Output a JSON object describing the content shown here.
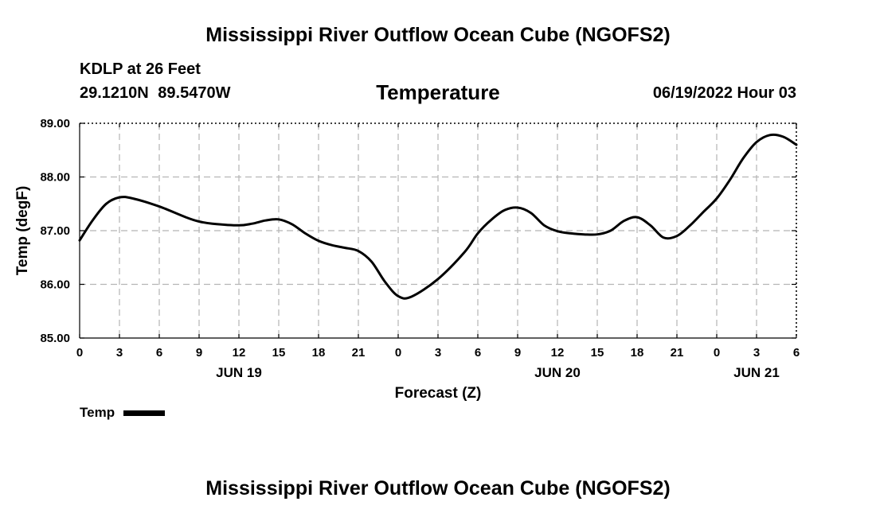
{
  "page": {
    "title_top": "Mississippi River Outflow Ocean Cube (NGOFS2)",
    "title_bottom": "Mississippi River Outflow Ocean Cube (NGOFS2)",
    "station": "KDLP at 26 Feet",
    "coordinates": "29.1210N  89.5470W",
    "variable_title": "Temperature",
    "datetime": "06/19/2022 Hour 03"
  },
  "chart_data": {
    "type": "line",
    "title": "Temperature",
    "xlabel": "Forecast (Z)",
    "ylabel": "Temp (degF)",
    "x_unit": "hours from 2022-06-19 00Z",
    "xlim": [
      0,
      54
    ],
    "ylim": [
      85.0,
      89.0
    ],
    "y_ticks": [
      "85.00",
      "86.00",
      "87.00",
      "88.00",
      "89.00"
    ],
    "y_tick_values": [
      85,
      86,
      87,
      88,
      89
    ],
    "x_ticks": [
      {
        "x": 0,
        "label": "0"
      },
      {
        "x": 3,
        "label": "3"
      },
      {
        "x": 6,
        "label": "6"
      },
      {
        "x": 9,
        "label": "9"
      },
      {
        "x": 12,
        "label": "12"
      },
      {
        "x": 15,
        "label": "15"
      },
      {
        "x": 18,
        "label": "18"
      },
      {
        "x": 21,
        "label": "21"
      },
      {
        "x": 24,
        "label": "0"
      },
      {
        "x": 27,
        "label": "3"
      },
      {
        "x": 30,
        "label": "6"
      },
      {
        "x": 33,
        "label": "9"
      },
      {
        "x": 36,
        "label": "12"
      },
      {
        "x": 39,
        "label": "15"
      },
      {
        "x": 42,
        "label": "18"
      },
      {
        "x": 45,
        "label": "21"
      },
      {
        "x": 48,
        "label": "0"
      },
      {
        "x": 51,
        "label": "3"
      },
      {
        "x": 54,
        "label": "6"
      }
    ],
    "date_labels": [
      {
        "x": 12,
        "label": "JUN 19"
      },
      {
        "x": 36,
        "label": "JUN 20"
      },
      {
        "x": 51,
        "label": "JUN 21"
      }
    ],
    "grid": true,
    "legend_position": "bottom-left",
    "series": [
      {
        "name": "Temp",
        "color": "#000000",
        "x": [
          0,
          1,
          2,
          3,
          4,
          6,
          8,
          9,
          10,
          12,
          13,
          14,
          15,
          16,
          17,
          18,
          19,
          20,
          21,
          22,
          23,
          24,
          25,
          27,
          29,
          30,
          31,
          32,
          33,
          34,
          35,
          36,
          37,
          38,
          39,
          40,
          41,
          42,
          43,
          44,
          45,
          46,
          47,
          48,
          49,
          50,
          51,
          52,
          53,
          54
        ],
        "values": [
          86.82,
          87.2,
          87.5,
          87.62,
          87.6,
          87.45,
          87.25,
          87.17,
          87.13,
          87.1,
          87.13,
          87.19,
          87.21,
          87.12,
          86.95,
          86.81,
          86.73,
          86.68,
          86.62,
          86.42,
          86.05,
          85.78,
          85.77,
          86.1,
          86.6,
          86.95,
          87.2,
          87.38,
          87.43,
          87.33,
          87.1,
          86.99,
          86.95,
          86.93,
          86.93,
          87.0,
          87.18,
          87.25,
          87.1,
          86.87,
          86.9,
          87.1,
          87.35,
          87.6,
          87.95,
          88.35,
          88.65,
          88.78,
          88.75,
          88.6
        ]
      }
    ]
  }
}
